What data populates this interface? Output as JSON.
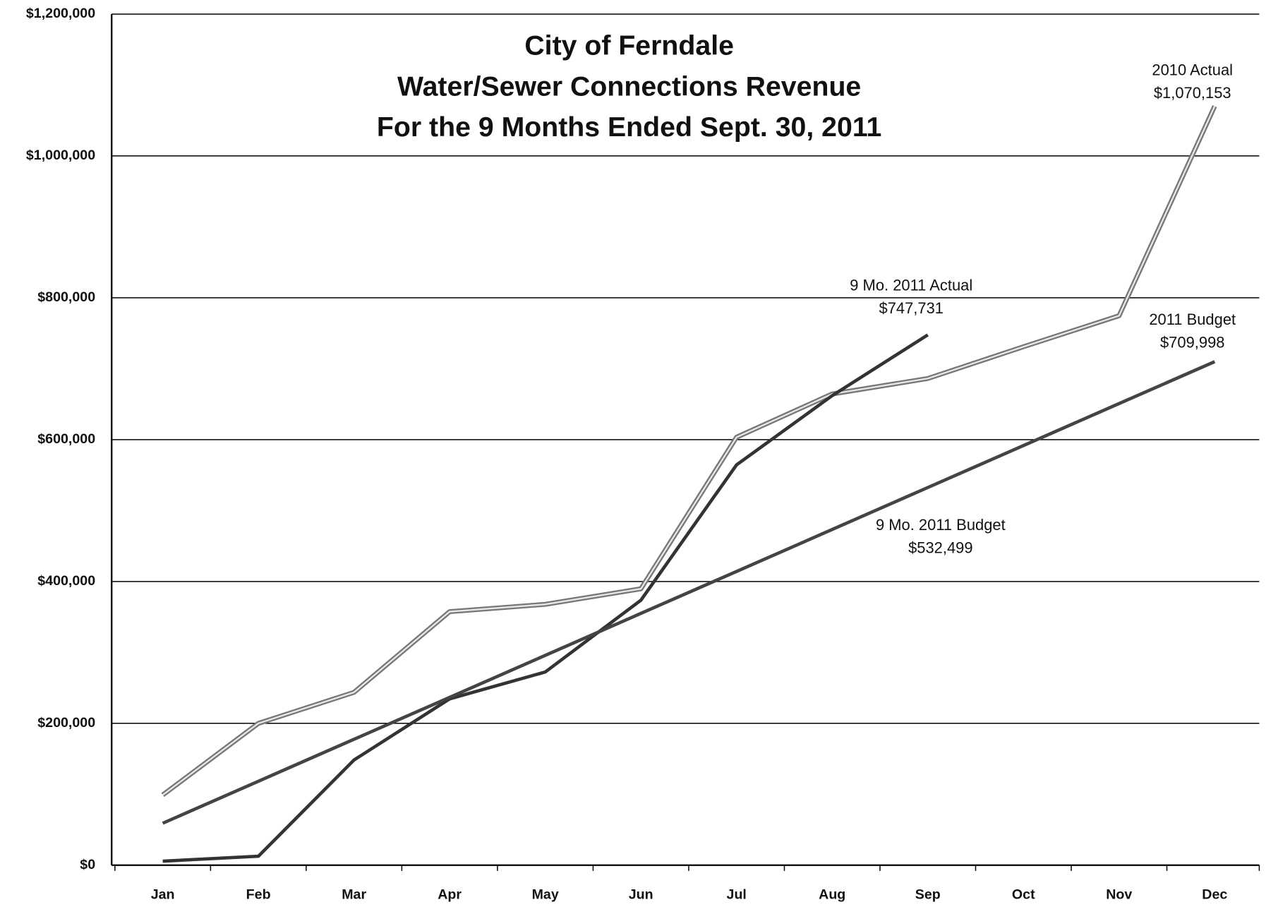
{
  "chart_data": {
    "type": "line",
    "title_lines": [
      "City of Ferndale",
      "Water/Sewer Connections Revenue",
      "For the 9 Months Ended Sept. 30, 2011"
    ],
    "categories": [
      "Jan",
      "Feb",
      "Mar",
      "Apr",
      "May",
      "Jun",
      "Jul",
      "Aug",
      "Sep",
      "Oct",
      "Nov",
      "Dec"
    ],
    "series": [
      {
        "color": "#777777",
        "values": [
          99000,
          200000,
          243700,
          357500,
          367800,
          389700,
          603400,
          664400,
          686200,
          731000,
          774700,
          1070153
        ]
      },
      {
        "color": "#333333",
        "values": [
          5700,
          12600,
          148300,
          234500,
          272400,
          373600,
          564400,
          662000,
          747731,
          null,
          null,
          null
        ]
      },
      {
        "color": "#444444",
        "values": [
          59167,
          118333,
          177500,
          236666,
          295833,
          354999,
          414166,
          473332,
          532499,
          591665,
          650832,
          709998
        ]
      }
    ],
    "annotations": [
      {
        "lines": [
          "2010 Actual",
          "$1,070,153"
        ]
      },
      {
        "lines": [
          "9 Mo. 2011 Actual",
          "$747,731"
        ]
      },
      {
        "lines": [
          "2011 Budget",
          "$709,998"
        ]
      },
      {
        "lines": [
          "9 Mo. 2011 Budget",
          "$532,499"
        ]
      }
    ],
    "ylim": [
      0,
      1200000
    ],
    "yticks": [
      {
        "value": 0,
        "label": "$0"
      },
      {
        "value": 200000,
        "label": "$200,000"
      },
      {
        "value": 400000,
        "label": "$400,000"
      },
      {
        "value": 600000,
        "label": "$600,000"
      },
      {
        "value": 800000,
        "label": "$800,000"
      },
      {
        "value": 1000000,
        "label": "$1,000,000"
      },
      {
        "value": 1200000,
        "label": "$1,200,000"
      }
    ],
    "grid": true
  }
}
